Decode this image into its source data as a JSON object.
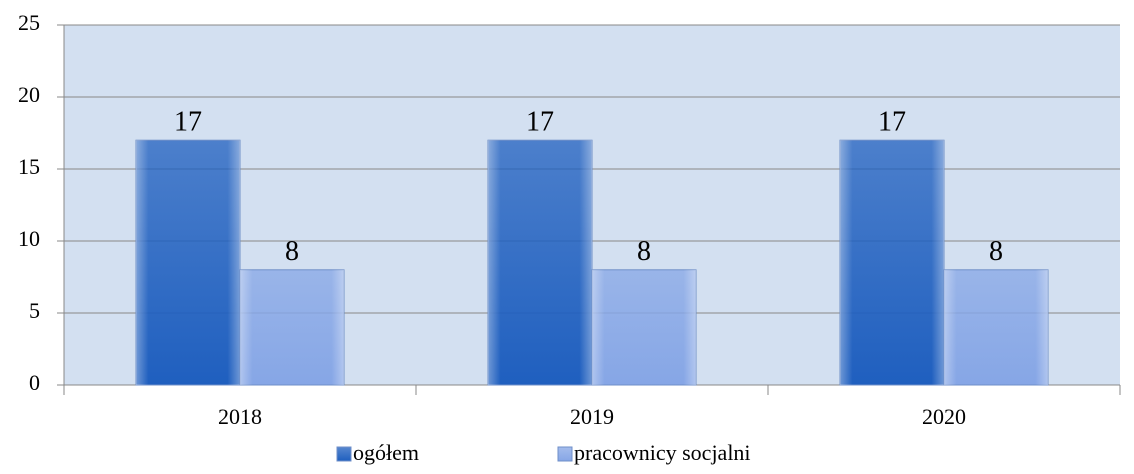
{
  "chart_data": {
    "type": "bar",
    "categories": [
      "2018",
      "2019",
      "2020"
    ],
    "series": [
      {
        "name": "ogółem",
        "color": "#1f5fbf",
        "values": [
          17,
          17,
          17
        ]
      },
      {
        "name": "pracownicy socjalni",
        "color": "#86a6e6",
        "values": [
          8,
          8,
          8
        ]
      }
    ],
    "ylim": [
      0,
      25
    ],
    "yticks": [
      0,
      5,
      10,
      15,
      20,
      25
    ],
    "grid": true,
    "legend": "bottom"
  }
}
